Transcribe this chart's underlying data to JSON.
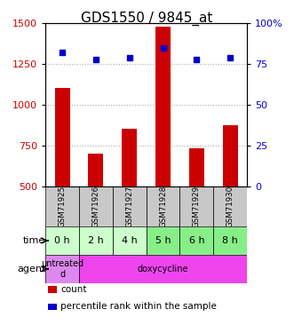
{
  "title": "GDS1550 / 9845_at",
  "samples": [
    "GSM71925",
    "GSM71926",
    "GSM71927",
    "GSM71928",
    "GSM71929",
    "GSM71930"
  ],
  "counts": [
    1105,
    700,
    855,
    1480,
    735,
    875
  ],
  "percentiles": [
    82,
    78,
    79,
    85,
    78,
    79
  ],
  "count_base": 500,
  "ylim_left": [
    500,
    1500
  ],
  "ylim_right": [
    0,
    100
  ],
  "yticks_left": [
    500,
    750,
    1000,
    1250,
    1500
  ],
  "yticks_right": [
    0,
    25,
    50,
    75,
    100
  ],
  "bar_color": "#cc0000",
  "dot_color": "#0000cc",
  "times": [
    "0 h",
    "2 h",
    "4 h",
    "5 h",
    "6 h",
    "8 h"
  ],
  "agent_defs": [
    [
      0,
      1,
      "#dd88ee",
      "untreated\nd"
    ],
    [
      1,
      6,
      "#ee44ee",
      "doxycycline"
    ]
  ],
  "time_colors": [
    "#ccffcc",
    "#ccffcc",
    "#ccffcc",
    "#88ee88",
    "#88ee88",
    "#88ee88"
  ],
  "sample_bg": "#c8c8c8",
  "grid_color": "#aaaaaa",
  "title_fontsize": 11,
  "tick_fontsize": 8,
  "label_fontsize": 7
}
